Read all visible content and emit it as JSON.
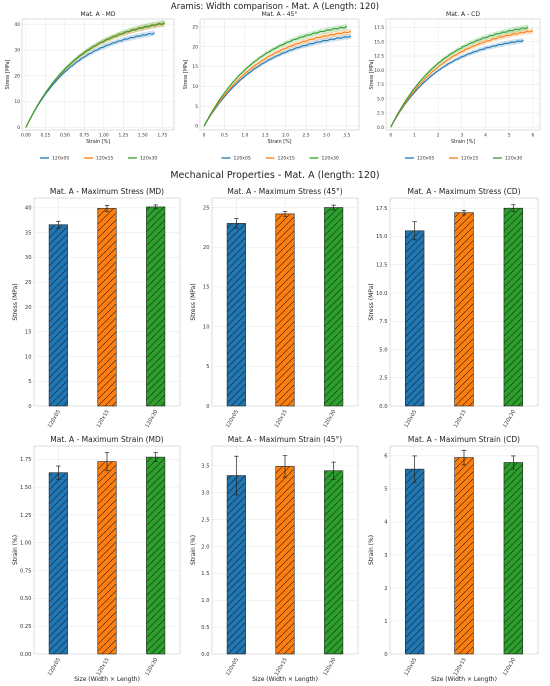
{
  "colors": {
    "c1": "#1f77b4",
    "c2": "#ff7f0e",
    "c3": "#2ca02c"
  },
  "top_title": "Aramis: Width comparison - Mat. A (Length: 120)",
  "mid_title": "Mechanical Properties - Mat. A (length: 120)",
  "chart_data": [
    {
      "type": "line",
      "title": "Mat. A - MD",
      "xlabel": "Strain [%]",
      "ylabel": "Stress [MPa]",
      "xlim": [
        -0.05,
        1.9
      ],
      "ylim": [
        -1,
        42
      ],
      "xticks": [
        0,
        0.25,
        0.5,
        0.75,
        1.0,
        1.25,
        1.5,
        1.75
      ],
      "xtick_labels": [
        "0.00",
        "0.25",
        "0.50",
        "0.75",
        "1.00",
        "1.25",
        "1.50",
        "1.75"
      ],
      "yticks": [
        0,
        10,
        20,
        30,
        40
      ],
      "grid": true,
      "legend": "bottom",
      "series": [
        {
          "name": "120x05",
          "color": "c1",
          "xmax": 1.65,
          "ymax": 36.5
        },
        {
          "name": "120x15",
          "color": "c2",
          "xmax": 1.78,
          "ymax": 40.2
        },
        {
          "name": "120x30",
          "color": "c3",
          "xmax": 1.78,
          "ymax": 40.4
        }
      ]
    },
    {
      "type": "line",
      "title": "Mat. A - 45°",
      "xlabel": "Strain [%]",
      "ylabel": "Stress [MPa]",
      "xlim": [
        -0.1,
        3.8
      ],
      "ylim": [
        -1,
        27
      ],
      "xticks": [
        0,
        0.5,
        1.0,
        1.5,
        2.0,
        2.5,
        3.0,
        3.5
      ],
      "xtick_labels": [
        "0",
        "0.5",
        "1.0",
        "1.5",
        "2.0",
        "2.5",
        "3.0",
        "3.5"
      ],
      "yticks": [
        0,
        5,
        10,
        15,
        20,
        25
      ],
      "grid": true,
      "legend": "bottom",
      "series": [
        {
          "name": "120x05",
          "color": "c1",
          "xmax": 3.6,
          "ymax": 22.6
        },
        {
          "name": "120x15",
          "color": "c2",
          "xmax": 3.6,
          "ymax": 23.8
        },
        {
          "name": "120x30",
          "color": "c3",
          "xmax": 3.5,
          "ymax": 25.0
        }
      ]
    },
    {
      "type": "line",
      "title": "Mat. A - CD",
      "xlabel": "Strain [%]",
      "ylabel": "Stress [MPa]",
      "xlim": [
        -0.2,
        6.3
      ],
      "ylim": [
        -0.5,
        19
      ],
      "xticks": [
        0,
        1,
        2,
        3,
        4,
        5,
        6
      ],
      "xtick_labels": [
        "0",
        "1",
        "2",
        "3",
        "4",
        "5",
        "6"
      ],
      "yticks": [
        0,
        2.5,
        5.0,
        7.5,
        10.0,
        12.5,
        15.0,
        17.5
      ],
      "ytick_labels": [
        "0.0",
        "2.5",
        "5.0",
        "7.5",
        "10.0",
        "12.5",
        "15.0",
        "17.5"
      ],
      "grid": true,
      "legend": "bottom",
      "series": [
        {
          "name": "120x05",
          "color": "c1",
          "xmax": 5.6,
          "ymax": 15.2
        },
        {
          "name": "120x15",
          "color": "c2",
          "xmax": 6.0,
          "ymax": 16.9
        },
        {
          "name": "120x30",
          "color": "c3",
          "xmax": 5.8,
          "ymax": 17.5
        }
      ]
    },
    {
      "type": "bar",
      "title": "Mat. A - Maximum Stress (MD)",
      "xlabel": "",
      "ylabel": "Stress (MPa)",
      "ylim": [
        0,
        42
      ],
      "yticks": [
        0,
        5,
        10,
        15,
        20,
        25,
        30,
        35,
        40
      ],
      "categories": [
        "120x05",
        "120x15",
        "120x30"
      ],
      "values": [
        36.6,
        39.9,
        40.2
      ],
      "errors": [
        0.7,
        0.6,
        0.4
      ]
    },
    {
      "type": "bar",
      "title": "Mat. A - Maximum Stress (45°)",
      "xlabel": "",
      "ylabel": "Stress (MPa)",
      "ylim": [
        0,
        26.2
      ],
      "yticks": [
        0,
        5,
        10,
        15,
        20,
        25
      ],
      "categories": [
        "120x05",
        "120x15",
        "120x30"
      ],
      "values": [
        23.0,
        24.2,
        25.0
      ],
      "errors": [
        0.6,
        0.3,
        0.3
      ]
    },
    {
      "type": "bar",
      "title": "Mat. A - Maximum Stress (CD)",
      "xlabel": "",
      "ylabel": "Stress (MPa)",
      "ylim": [
        0,
        18.4
      ],
      "yticks": [
        0,
        2.5,
        5.0,
        7.5,
        10.0,
        12.5,
        15.0,
        17.5
      ],
      "ytick_labels": [
        "0.0",
        "2.5",
        "5.0",
        "7.5",
        "10.0",
        "12.5",
        "15.0",
        "17.5"
      ],
      "categories": [
        "120x05",
        "120x15",
        "120x30"
      ],
      "values": [
        15.5,
        17.1,
        17.5
      ],
      "errors": [
        0.8,
        0.2,
        0.3
      ]
    },
    {
      "type": "bar",
      "title": "Mat. A - Maximum Strain (MD)",
      "xlabel": "Size (Width × Length)",
      "ylabel": "Strain (%)",
      "ylim": [
        0,
        1.87
      ],
      "yticks": [
        0,
        0.25,
        0.5,
        0.75,
        1.0,
        1.25,
        1.5,
        1.75
      ],
      "ytick_labels": [
        "0.00",
        "0.25",
        "0.50",
        "0.75",
        "1.00",
        "1.25",
        "1.50",
        "1.75"
      ],
      "categories": [
        "120x05",
        "120x15",
        "120x30"
      ],
      "values": [
        1.63,
        1.73,
        1.77
      ],
      "errors": [
        0.06,
        0.08,
        0.04
      ]
    },
    {
      "type": "bar",
      "title": "Mat. A - Maximum Strain (45°)",
      "xlabel": "Size (Width × Length)",
      "ylabel": "Strain (%)",
      "ylim": [
        0,
        3.87
      ],
      "yticks": [
        0,
        0.5,
        1.0,
        1.5,
        2.0,
        2.5,
        3.0,
        3.5
      ],
      "ytick_labels": [
        "0.0",
        "0.5",
        "1.0",
        "1.5",
        "2.0",
        "2.5",
        "3.0",
        "3.5"
      ],
      "categories": [
        "120x05",
        "120x15",
        "120x30"
      ],
      "values": [
        3.32,
        3.49,
        3.41
      ],
      "errors": [
        0.36,
        0.2,
        0.16
      ]
    },
    {
      "type": "bar",
      "title": "Mat. A - Maximum Strain (CD)",
      "xlabel": "Size (Width × Length)",
      "ylabel": "Strain (%)",
      "ylim": [
        0,
        6.3
      ],
      "yticks": [
        0,
        1,
        2,
        3,
        4,
        5,
        6
      ],
      "categories": [
        "120x05",
        "120x15",
        "120x30"
      ],
      "values": [
        5.6,
        5.95,
        5.8
      ],
      "errors": [
        0.4,
        0.22,
        0.2
      ]
    }
  ]
}
